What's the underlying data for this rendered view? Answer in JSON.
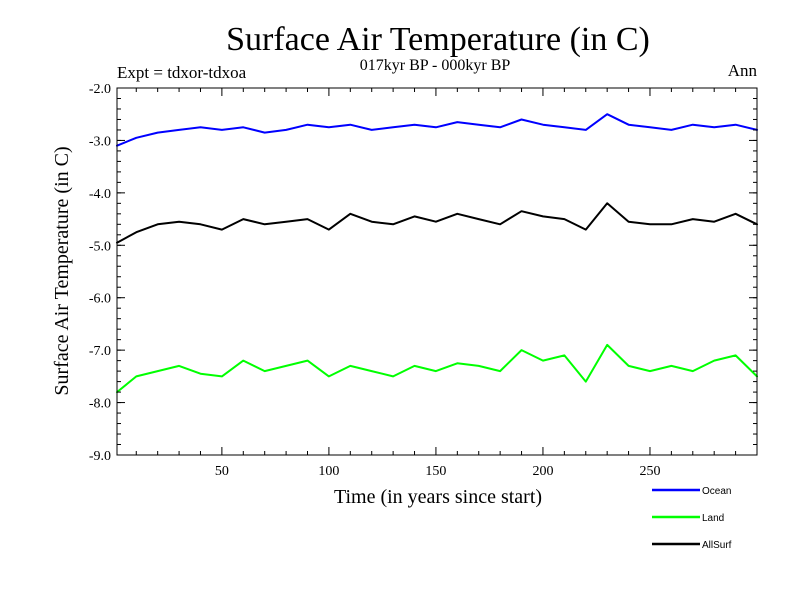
{
  "chart_data": {
    "type": "line",
    "title": "Surface Air Temperature (in C)",
    "subtitle": "017kyr BP - 000kyr BP",
    "annotation_left": "Expt = tdxor-tdxoa",
    "annotation_right": "Ann",
    "xlabel": "Time (in years since start)",
    "ylabel": "Surface Air Temperature (in C)",
    "xlim": [
      1,
      300
    ],
    "ylim": [
      -9.0,
      -2.0
    ],
    "xticks": [
      50,
      100,
      150,
      200,
      250
    ],
    "xtick_labels": [
      "50",
      "100",
      "150",
      "200",
      "250"
    ],
    "yticks": [
      -9.0,
      -8.0,
      -7.0,
      -6.0,
      -5.0,
      -4.0,
      -3.0,
      -2.0
    ],
    "ytick_labels": [
      "-9.0",
      "-8.0",
      "-7.0",
      "-6.0",
      "-5.0",
      "-4.0",
      "-3.0",
      "-2.0"
    ],
    "grid": false,
    "legend_position": "bottom-right",
    "series": [
      {
        "name": "Ocean",
        "color": "#0000ff",
        "x": [
          1,
          10,
          20,
          30,
          40,
          50,
          60,
          70,
          80,
          90,
          100,
          110,
          120,
          130,
          140,
          150,
          160,
          170,
          180,
          190,
          200,
          210,
          220,
          230,
          240,
          250,
          260,
          270,
          280,
          290,
          300
        ],
        "values": [
          -3.1,
          -2.95,
          -2.85,
          -2.8,
          -2.75,
          -2.8,
          -2.75,
          -2.85,
          -2.8,
          -2.7,
          -2.75,
          -2.7,
          -2.8,
          -2.75,
          -2.7,
          -2.75,
          -2.65,
          -2.7,
          -2.75,
          -2.6,
          -2.7,
          -2.75,
          -2.8,
          -2.5,
          -2.7,
          -2.75,
          -2.8,
          -2.7,
          -2.75,
          -2.7,
          -2.8
        ]
      },
      {
        "name": "Land",
        "color": "#00ff00",
        "x": [
          1,
          10,
          20,
          30,
          40,
          50,
          60,
          70,
          80,
          90,
          100,
          110,
          120,
          130,
          140,
          150,
          160,
          170,
          180,
          190,
          200,
          210,
          220,
          230,
          240,
          250,
          260,
          270,
          280,
          290,
          300
        ],
        "values": [
          -7.8,
          -7.5,
          -7.4,
          -7.3,
          -7.45,
          -7.5,
          -7.2,
          -7.4,
          -7.3,
          -7.2,
          -7.5,
          -7.3,
          -7.4,
          -7.5,
          -7.3,
          -7.4,
          -7.25,
          -7.3,
          -7.4,
          -7.0,
          -7.2,
          -7.1,
          -7.6,
          -6.9,
          -7.3,
          -7.4,
          -7.3,
          -7.4,
          -7.2,
          -7.1,
          -7.5
        ]
      },
      {
        "name": "AllSurf",
        "color": "#000000",
        "x": [
          1,
          10,
          20,
          30,
          40,
          50,
          60,
          70,
          80,
          90,
          100,
          110,
          120,
          130,
          140,
          150,
          160,
          170,
          180,
          190,
          200,
          210,
          220,
          230,
          240,
          250,
          260,
          270,
          280,
          290,
          300
        ],
        "values": [
          -4.95,
          -4.75,
          -4.6,
          -4.55,
          -4.6,
          -4.7,
          -4.5,
          -4.6,
          -4.55,
          -4.5,
          -4.7,
          -4.4,
          -4.55,
          -4.6,
          -4.45,
          -4.55,
          -4.4,
          -4.5,
          -4.6,
          -4.35,
          -4.45,
          -4.5,
          -4.7,
          -4.2,
          -4.55,
          -4.6,
          -4.6,
          -4.5,
          -4.55,
          -4.4,
          -4.6
        ]
      }
    ]
  }
}
